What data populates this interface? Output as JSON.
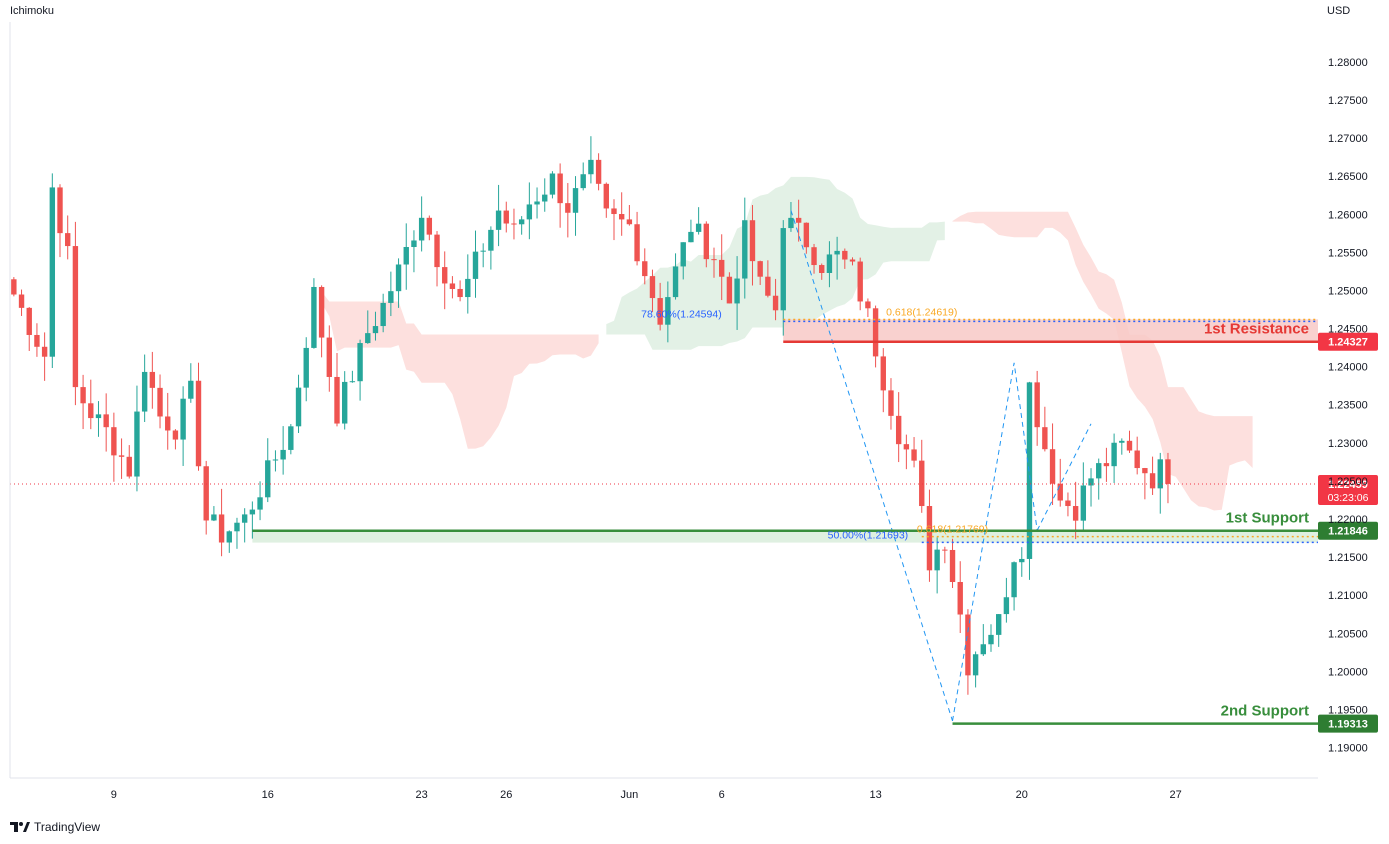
{
  "header": {
    "indicator_name": "Ichimoku",
    "currency": "USD"
  },
  "footer": {
    "brand": "TradingView"
  },
  "colors": {
    "bull": "#26a69a",
    "bear": "#ef5350",
    "cloud_bull": "#e3f1e6",
    "cloud_bear": "#fde0de",
    "support": "#388e3c",
    "resistance": "#e53935",
    "fib_blue": "#2962ff",
    "fib_gold": "#f9a825",
    "price_tag": "#f23645"
  },
  "chart_data": {
    "type": "candlestick",
    "title": "",
    "y_range": [
      1.186,
      1.2855
    ],
    "y_ticks": [
      "1.28000",
      "1.27500",
      "1.27000",
      "1.26500",
      "1.26000",
      "1.25500",
      "1.25000",
      "1.24500",
      "1.24000",
      "1.23500",
      "1.23000",
      "1.22500",
      "1.22000",
      "1.21500",
      "1.21000",
      "1.20500",
      "1.20000",
      "1.19500",
      "1.19000"
    ],
    "x_ticks": [
      {
        "label": "9",
        "bar": 13
      },
      {
        "label": "16",
        "bar": 33
      },
      {
        "label": "23",
        "bar": 53
      },
      {
        "label": "26",
        "bar": 64
      },
      {
        "label": "Jun",
        "bar": 80
      },
      {
        "label": "6",
        "bar": 92
      },
      {
        "label": "13",
        "bar": 112
      },
      {
        "label": "20",
        "bar": 131
      },
      {
        "label": "27",
        "bar": 151
      }
    ],
    "bars_total": 170,
    "ohlc_anchor_closes": [
      [
        0,
        1.2495
      ],
      [
        4,
        1.2415
      ],
      [
        5,
        1.2635
      ],
      [
        7,
        1.2545
      ],
      [
        8,
        1.237
      ],
      [
        10,
        1.234
      ],
      [
        12,
        1.2315
      ],
      [
        15,
        1.2265
      ],
      [
        17,
        1.2405
      ],
      [
        19,
        1.2335
      ],
      [
        21,
        1.232
      ],
      [
        23,
        1.2365
      ],
      [
        25,
        1.22
      ],
      [
        27,
        1.218
      ],
      [
        30,
        1.22
      ],
      [
        33,
        1.226
      ],
      [
        36,
        1.232
      ],
      [
        39,
        1.2495
      ],
      [
        42,
        1.234
      ],
      [
        44,
        1.239
      ],
      [
        46,
        1.2445
      ],
      [
        48,
        1.248
      ],
      [
        50,
        1.2525
      ],
      [
        53,
        1.2605
      ],
      [
        55,
        1.2545
      ],
      [
        58,
        1.2485
      ],
      [
        60,
        1.2535
      ],
      [
        63,
        1.2605
      ],
      [
        65,
        1.2575
      ],
      [
        67,
        1.2615
      ],
      [
        70,
        1.2645
      ],
      [
        72,
        1.261
      ],
      [
        75,
        1.2655
      ],
      [
        77,
        1.2595
      ],
      [
        80,
        1.2585
      ],
      [
        82,
        1.2525
      ],
      [
        84,
        1.2465
      ],
      [
        86,
        1.2525
      ],
      [
        88,
        1.2585
      ],
      [
        91,
        1.2545
      ],
      [
        93,
        1.2485
      ],
      [
        95,
        1.2575
      ],
      [
        97,
        1.2505
      ],
      [
        99,
        1.2475
      ],
      [
        100,
        1.2595
      ],
      [
        103,
        1.2565
      ],
      [
        105,
        1.2535
      ],
      [
        107,
        1.2545
      ],
      [
        109,
        1.2525
      ],
      [
        111,
        1.2465
      ],
      [
        113,
        1.2385
      ],
      [
        115,
        1.2315
      ],
      [
        117,
        1.2265
      ],
      [
        119,
        1.2145
      ],
      [
        121,
        1.2175
      ],
      [
        123,
        1.2075
      ],
      [
        124,
        1.201
      ],
      [
        126,
        1.2045
      ],
      [
        128,
        1.2065
      ],
      [
        130,
        1.2155
      ],
      [
        131,
        1.2165
      ],
      [
        132,
        1.2375
      ],
      [
        134,
        1.2295
      ],
      [
        136,
        1.2225
      ],
      [
        138,
        1.2215
      ],
      [
        140,
        1.2255
      ],
      [
        142,
        1.2275
      ],
      [
        144,
        1.2295
      ],
      [
        146,
        1.2275
      ],
      [
        148,
        1.2255
      ],
      [
        149,
        1.2265
      ],
      [
        150,
        1.2246
      ]
    ],
    "last_price": {
      "value": "1.22459",
      "countdown": "03:23:06",
      "price": 1.22459
    },
    "levels": [
      {
        "name": "1st Resistance",
        "price": 1.24327,
        "label": "1.24327",
        "color": "resistance",
        "start_bar": 100
      },
      {
        "name": "1st Support",
        "price": 1.21846,
        "label": "1.21846",
        "color": "support",
        "start_bar": 31
      },
      {
        "name": "2nd Support",
        "price": 1.19313,
        "label": "1.19313",
        "color": "support",
        "start_bar": 122
      }
    ],
    "fib_labels": [
      {
        "text": "78.60%(1.24594)",
        "price": 1.24594,
        "bar": 92,
        "color": "fib_blue"
      },
      {
        "text": "0.618(1.24619)",
        "price": 1.24619,
        "bar": 118,
        "color": "fib_gold"
      },
      {
        "text": "0.618(1.21769)",
        "price": 1.21769,
        "bar": 122,
        "color": "fib_gold"
      },
      {
        "text": "50.00%(1.21693)",
        "price": 1.21693,
        "bar": 111,
        "color": "fib_blue"
      }
    ],
    "fib_lines": [
      {
        "from_bar": 100,
        "price": 1.24594,
        "color": "fib_blue"
      },
      {
        "from_bar": 100,
        "price": 1.24619,
        "color": "fib_gold"
      },
      {
        "from_bar": 118,
        "price": 1.21769,
        "color": "fib_gold"
      },
      {
        "from_bar": 118,
        "price": 1.21693,
        "color": "fib_blue"
      }
    ],
    "swing_legs": [
      [
        [
          101,
          1.2605
        ],
        [
          122,
          1.1935
        ]
      ],
      [
        [
          122,
          1.1935
        ],
        [
          130,
          1.2405
        ],
        [
          133,
          1.2185
        ]
      ],
      [
        [
          133,
          1.2185
        ],
        [
          140,
          1.2325
        ]
      ]
    ]
  }
}
